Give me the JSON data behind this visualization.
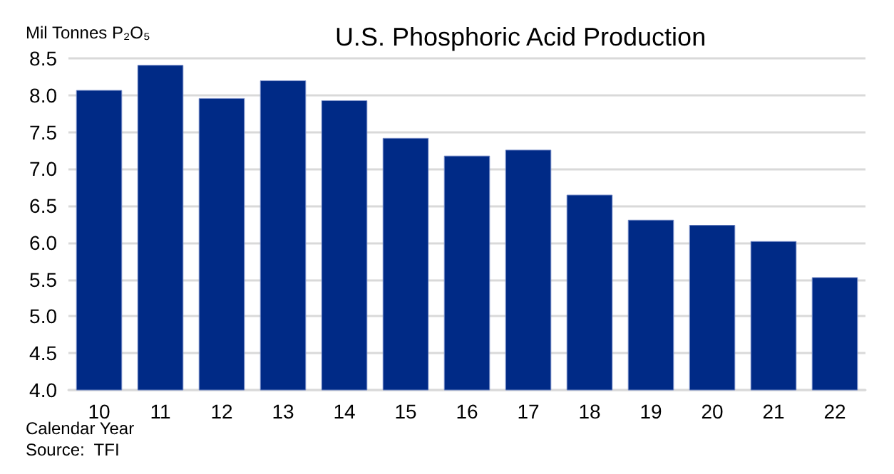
{
  "chart_data": {
    "type": "bar",
    "title": "U.S. Phosphoric Acid Production",
    "ylabel": "Mil Tonnes P₂O₅",
    "xlabel": "Calendar Year",
    "annotations": [
      "Source:  TFI"
    ],
    "categories": [
      "10",
      "11",
      "12",
      "13",
      "14",
      "15",
      "16",
      "17",
      "18",
      "19",
      "20",
      "21",
      "22"
    ],
    "values": [
      8.07,
      8.41,
      7.96,
      8.2,
      7.93,
      7.42,
      7.18,
      7.26,
      6.65,
      6.31,
      6.24,
      6.02,
      5.53
    ],
    "color": "#002a86",
    "ylim": [
      4.0,
      8.5
    ],
    "yticks": [
      {
        "value": 4,
        "label": "4.0"
      },
      4.5,
      {
        "value": 5,
        "label": "5.0"
      },
      5.5,
      {
        "value": 6,
        "label": "6.0"
      },
      6.5,
      {
        "value": 7,
        "label": "7.0"
      },
      7.5,
      {
        "value": 8,
        "label": "8.0"
      },
      8.5
    ],
    "grid": "y"
  }
}
